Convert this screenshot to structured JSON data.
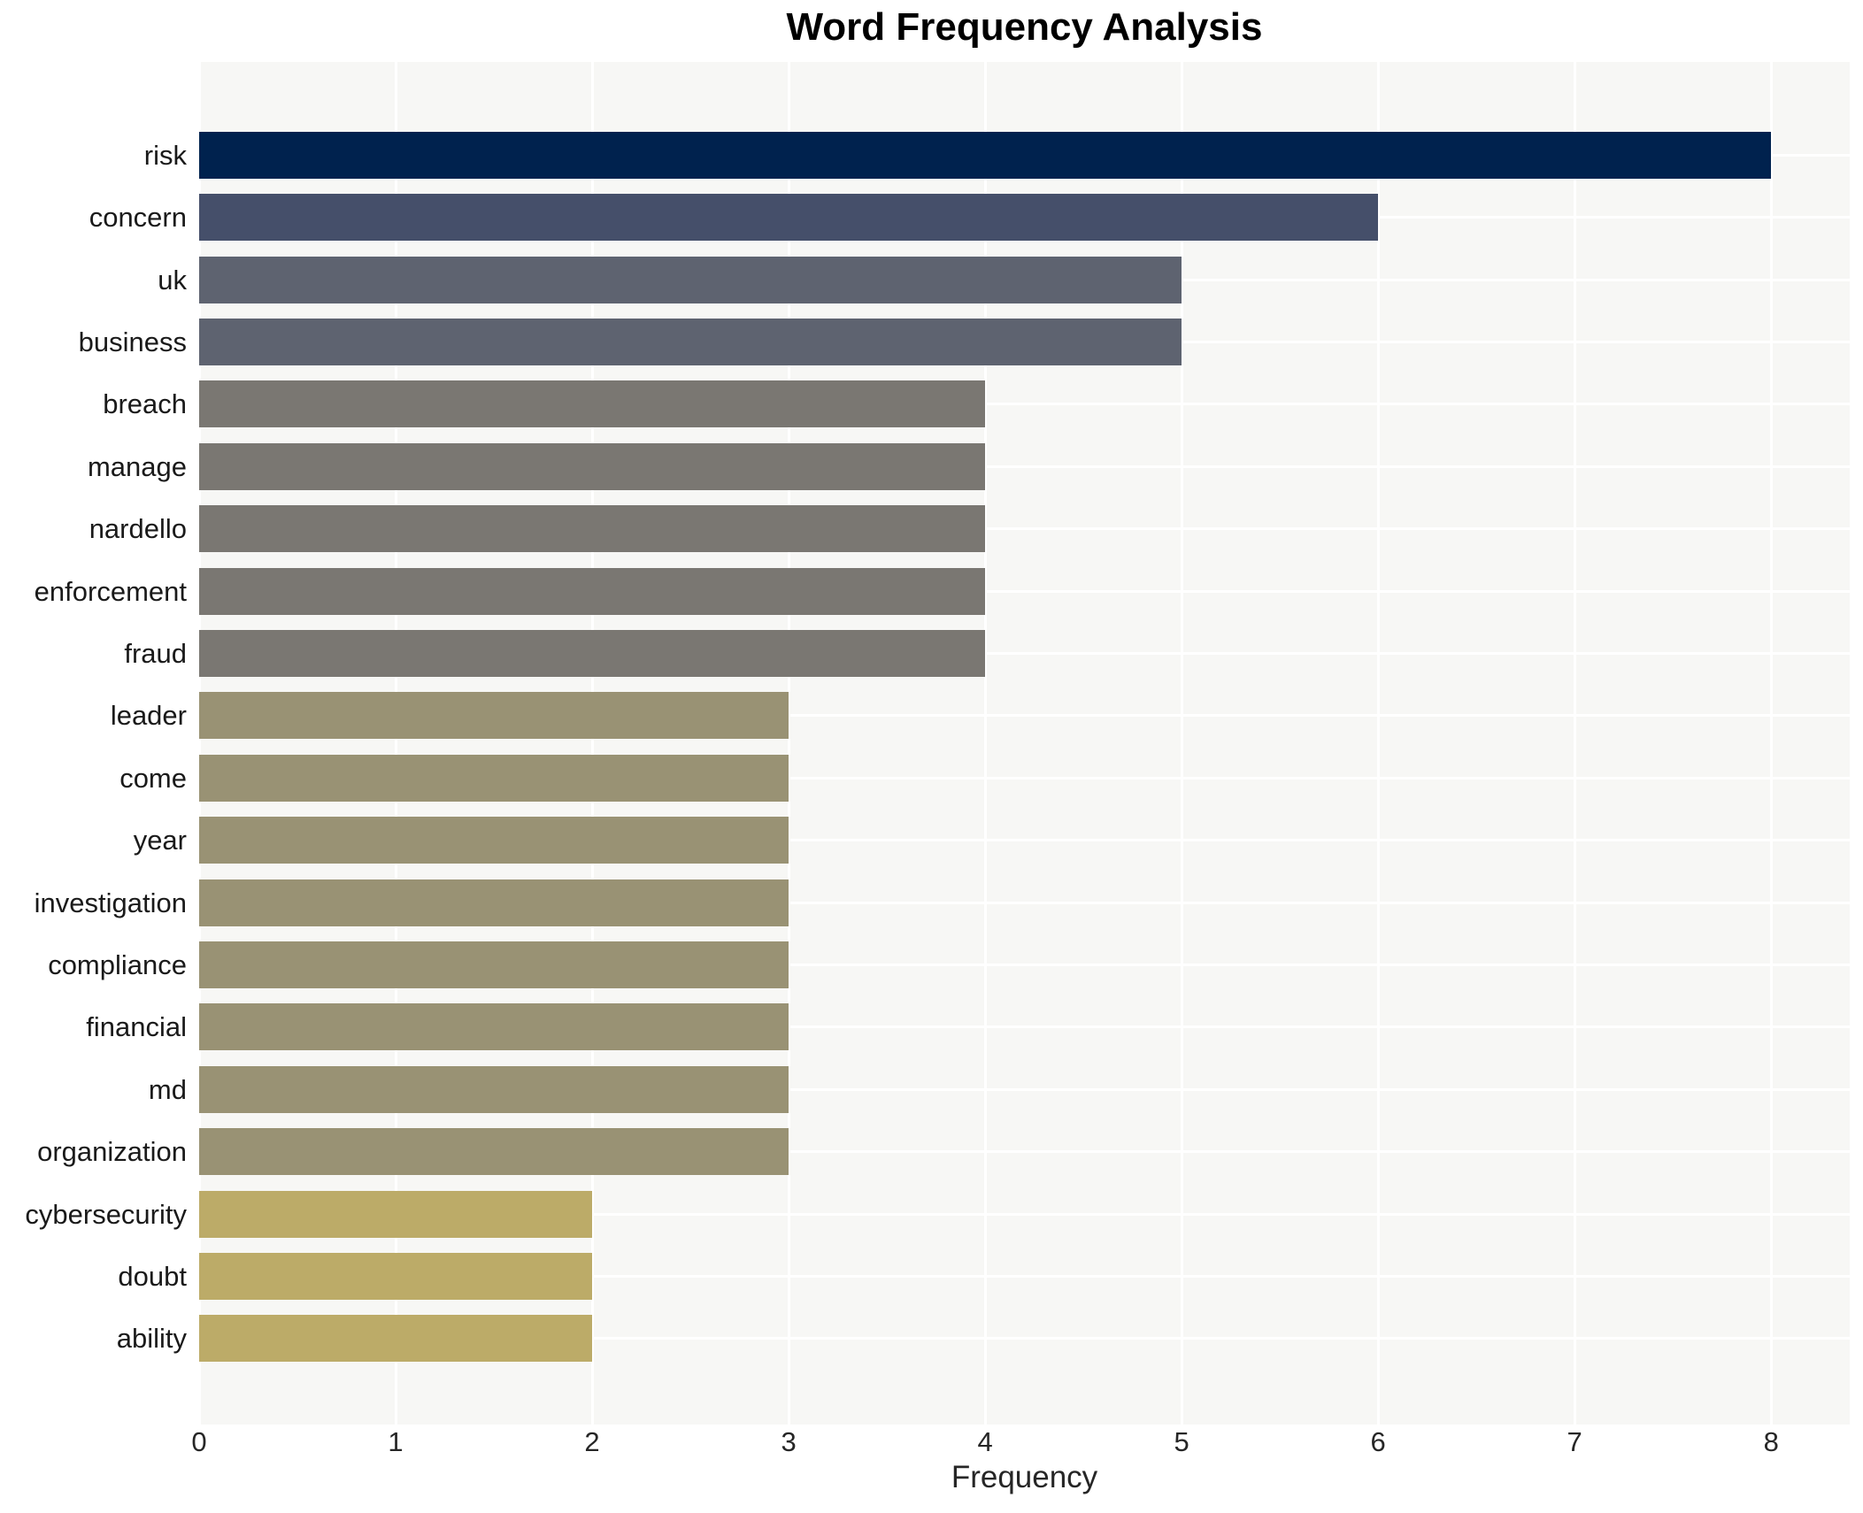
{
  "title": "Word Frequency Analysis",
  "chart_data": {
    "type": "bar",
    "orientation": "horizontal",
    "title": "Word Frequency Analysis",
    "xlabel": "Frequency",
    "ylabel": "",
    "categories": [
      "risk",
      "concern",
      "uk",
      "business",
      "breach",
      "manage",
      "nardello",
      "enforcement",
      "fraud",
      "leader",
      "come",
      "year",
      "investigation",
      "compliance",
      "financial",
      "md",
      "organization",
      "cybersecurity",
      "doubt",
      "ability"
    ],
    "values": [
      8,
      6,
      5,
      5,
      4,
      4,
      4,
      4,
      4,
      3,
      3,
      3,
      3,
      3,
      3,
      3,
      3,
      2,
      2,
      2
    ],
    "bar_colors": [
      "#00224e",
      "#454f6a",
      "#5e6370",
      "#5e6370",
      "#7a7772",
      "#7a7772",
      "#7a7772",
      "#7a7772",
      "#7a7772",
      "#999274",
      "#999274",
      "#999274",
      "#999274",
      "#999274",
      "#999274",
      "#999274",
      "#999274",
      "#bcab68",
      "#bcab68",
      "#bcab68"
    ],
    "colors_by_value": {
      "8": "#00224e",
      "6": "#454f6a",
      "5": "#5e6370",
      "4": "#7a7772",
      "3": "#999274",
      "2": "#bcab68"
    },
    "xticks": [
      0,
      1,
      2,
      3,
      4,
      5,
      6,
      7,
      8
    ],
    "xlim": [
      0,
      8.4
    ],
    "grid": true,
    "legend_position": "none",
    "plot_background": "#f7f7f5",
    "gridline_color": "#ffffff",
    "page_background": "#ffffff"
  }
}
